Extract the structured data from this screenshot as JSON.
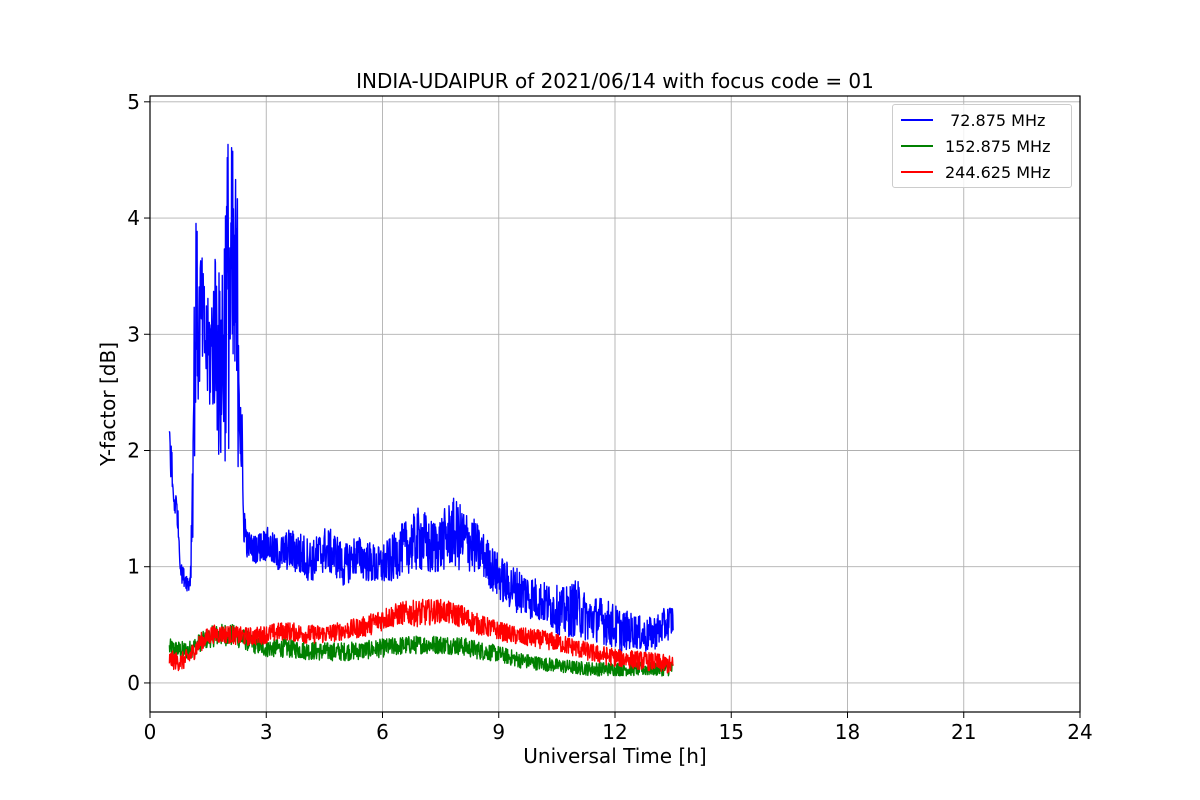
{
  "chart_data": {
    "type": "line",
    "title": "INDIA-UDAIPUR of 2021/06/14 with focus code = 01",
    "xlabel": "Universal Time [h]",
    "ylabel": "Y-factor [dB]",
    "xlim": [
      0,
      24
    ],
    "ylim": [
      -0.25,
      5.05
    ],
    "xticks": [
      0,
      3,
      6,
      9,
      12,
      15,
      18,
      21,
      24
    ],
    "yticks": [
      0,
      1,
      2,
      3,
      4,
      5
    ],
    "grid": true,
    "legend_position": "top-right",
    "series": [
      {
        "name": " 72.875 MHz",
        "color": "#0000ff",
        "x": [
          0.5,
          0.55,
          0.6,
          0.7,
          0.8,
          0.9,
          1.0,
          1.05,
          1.1,
          1.15,
          1.2,
          1.25,
          1.3,
          1.4,
          1.5,
          1.6,
          1.7,
          1.8,
          1.9,
          2.0,
          2.1,
          2.2,
          2.3,
          2.4,
          2.5,
          2.7,
          3.0,
          3.3,
          3.6,
          3.9,
          4.2,
          4.5,
          4.8,
          5.0,
          5.3,
          5.6,
          5.9,
          6.2,
          6.5,
          6.8,
          7.0,
          7.2,
          7.5,
          7.8,
          8.0,
          8.3,
          8.6,
          8.9,
          9.2,
          9.5,
          9.8,
          10.1,
          10.4,
          10.7,
          11.0,
          11.3,
          11.6,
          11.9,
          12.2,
          12.5,
          12.8,
          13.1,
          13.3,
          13.5
        ],
        "y": [
          2.1,
          1.9,
          1.6,
          1.5,
          0.95,
          0.9,
          0.85,
          0.95,
          1.8,
          2.8,
          3.3,
          2.9,
          3.2,
          3.0,
          2.8,
          2.9,
          3.1,
          2.6,
          3.0,
          3.4,
          3.3,
          3.2,
          3.0,
          1.5,
          1.2,
          1.15,
          1.2,
          1.1,
          1.15,
          1.1,
          1.05,
          1.15,
          1.1,
          1.0,
          1.1,
          1.05,
          1.0,
          1.05,
          1.15,
          1.2,
          1.25,
          1.15,
          1.2,
          1.3,
          1.25,
          1.2,
          1.1,
          0.95,
          0.85,
          0.8,
          0.75,
          0.7,
          0.65,
          0.6,
          0.65,
          0.55,
          0.55,
          0.5,
          0.45,
          0.45,
          0.4,
          0.45,
          0.5,
          0.55
        ],
        "amplitude": [
          0.25,
          0.25,
          0.15,
          0.12,
          0.08,
          0.08,
          0.08,
          0.12,
          0.6,
          0.9,
          0.8,
          0.6,
          0.6,
          0.5,
          0.5,
          0.6,
          0.8,
          0.9,
          1.2,
          1.4,
          1.4,
          1.3,
          1.2,
          0.3,
          0.12,
          0.12,
          0.15,
          0.15,
          0.18,
          0.2,
          0.18,
          0.2,
          0.2,
          0.18,
          0.18,
          0.18,
          0.18,
          0.2,
          0.22,
          0.25,
          0.3,
          0.25,
          0.25,
          0.3,
          0.3,
          0.25,
          0.2,
          0.2,
          0.2,
          0.2,
          0.2,
          0.18,
          0.2,
          0.22,
          0.25,
          0.2,
          0.2,
          0.2,
          0.18,
          0.15,
          0.15,
          0.15,
          0.15,
          0.15
        ]
      },
      {
        "name": "152.875 MHz",
        "color": "#008000",
        "x": [
          0.5,
          0.8,
          1.0,
          1.3,
          1.6,
          2.0,
          2.4,
          2.7,
          3.0,
          3.5,
          4.0,
          4.5,
          5.0,
          5.5,
          6.0,
          6.5,
          7.0,
          7.5,
          8.0,
          8.5,
          9.0,
          9.5,
          10.0,
          10.5,
          11.0,
          11.5,
          12.0,
          12.5,
          13.0,
          13.5
        ],
        "y": [
          0.3,
          0.28,
          0.28,
          0.35,
          0.4,
          0.42,
          0.38,
          0.33,
          0.3,
          0.3,
          0.28,
          0.27,
          0.27,
          0.28,
          0.3,
          0.32,
          0.33,
          0.33,
          0.32,
          0.28,
          0.25,
          0.2,
          0.17,
          0.15,
          0.13,
          0.12,
          0.12,
          0.12,
          0.12,
          0.12
        ],
        "amplitude": [
          0.08,
          0.08,
          0.08,
          0.08,
          0.09,
          0.1,
          0.09,
          0.08,
          0.08,
          0.08,
          0.08,
          0.08,
          0.08,
          0.08,
          0.08,
          0.08,
          0.08,
          0.08,
          0.08,
          0.08,
          0.07,
          0.07,
          0.06,
          0.06,
          0.06,
          0.06,
          0.06,
          0.06,
          0.06,
          0.06
        ]
      },
      {
        "name": "244.625 MHz",
        "color": "#ff0000",
        "x": [
          0.5,
          0.8,
          1.0,
          1.3,
          1.6,
          2.0,
          2.4,
          2.7,
          3.0,
          3.5,
          4.0,
          4.5,
          5.0,
          5.5,
          6.0,
          6.5,
          7.0,
          7.5,
          8.0,
          8.5,
          9.0,
          9.5,
          10.0,
          10.5,
          11.0,
          11.5,
          12.0,
          12.5,
          13.0,
          13.5
        ],
        "y": [
          0.2,
          0.18,
          0.22,
          0.35,
          0.42,
          0.42,
          0.4,
          0.4,
          0.42,
          0.45,
          0.42,
          0.42,
          0.45,
          0.48,
          0.55,
          0.6,
          0.6,
          0.62,
          0.58,
          0.5,
          0.45,
          0.4,
          0.38,
          0.35,
          0.3,
          0.25,
          0.22,
          0.2,
          0.18,
          0.15
        ],
        "amplitude": [
          0.08,
          0.08,
          0.08,
          0.08,
          0.08,
          0.08,
          0.08,
          0.08,
          0.08,
          0.08,
          0.08,
          0.08,
          0.08,
          0.09,
          0.1,
          0.1,
          0.12,
          0.1,
          0.1,
          0.09,
          0.08,
          0.08,
          0.08,
          0.08,
          0.08,
          0.08,
          0.08,
          0.08,
          0.08,
          0.08
        ]
      }
    ]
  }
}
